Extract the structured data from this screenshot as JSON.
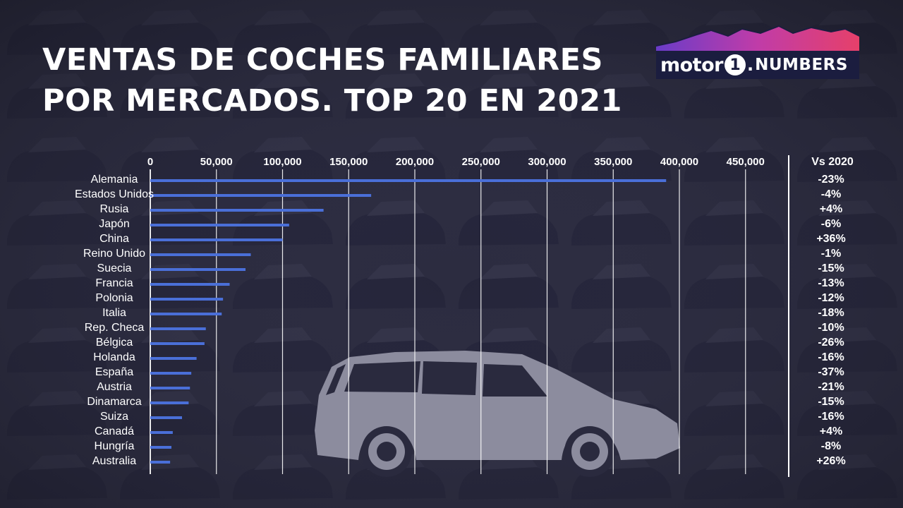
{
  "title_lines": [
    "VENTAS DE COCHES FAMILIARES",
    "POR MERCADOS. TOP 20 EN 2021"
  ],
  "logo": {
    "motor": "motor",
    "one": "1",
    "dot": ".",
    "numbers": "NUMBERS"
  },
  "colors": {
    "bar": "#4a6fd8",
    "background": "#2a2a3e",
    "car": "#8c8c9e",
    "text": "#ffffff"
  },
  "icons": [
    "car-silhouette-icon"
  ],
  "chart_data": {
    "type": "bar",
    "orientation": "horizontal",
    "title": "VENTAS DE COCHES FAMILIARES POR MERCADOS. TOP 20 EN 2021",
    "xlabel": "",
    "ylabel": "",
    "xlim": [
      0,
      500000
    ],
    "x_ticks": [
      0,
      50000,
      100000,
      150000,
      200000,
      250000,
      300000,
      350000,
      400000,
      450000
    ],
    "x_tick_labels": [
      "0",
      "50,000",
      "100,000",
      "150,000",
      "200,000",
      "250,000",
      "300,000",
      "350,000",
      "400,000",
      "450,000"
    ],
    "grid": true,
    "categories": [
      "Alemania",
      "Estados Unidos",
      "Rusia",
      "Japón",
      "China",
      "Reino Unido",
      "Suecia",
      "Francia",
      "Polonia",
      "Italia",
      "Rep. Checa",
      "Bélgica",
      "Holanda",
      "España",
      "Austria",
      "Dinamarca",
      "Suiza",
      "Canadá",
      "Hungría",
      "Australia"
    ],
    "values": [
      390000,
      167000,
      131000,
      105000,
      100000,
      76000,
      72000,
      60000,
      55000,
      54000,
      42000,
      41000,
      35000,
      31000,
      30000,
      29000,
      24000,
      17000,
      16000,
      15000
    ],
    "change_header": "Vs 2020",
    "change": [
      "-23%",
      "-4%",
      "+4%",
      "-6%",
      "+36%",
      "-1%",
      "-15%",
      "-13%",
      "-12%",
      "-18%",
      "-10%",
      "-26%",
      "-16%",
      "-37%",
      "-21%",
      "-15%",
      "-16%",
      "+4%",
      "-8%",
      "+26%"
    ]
  }
}
